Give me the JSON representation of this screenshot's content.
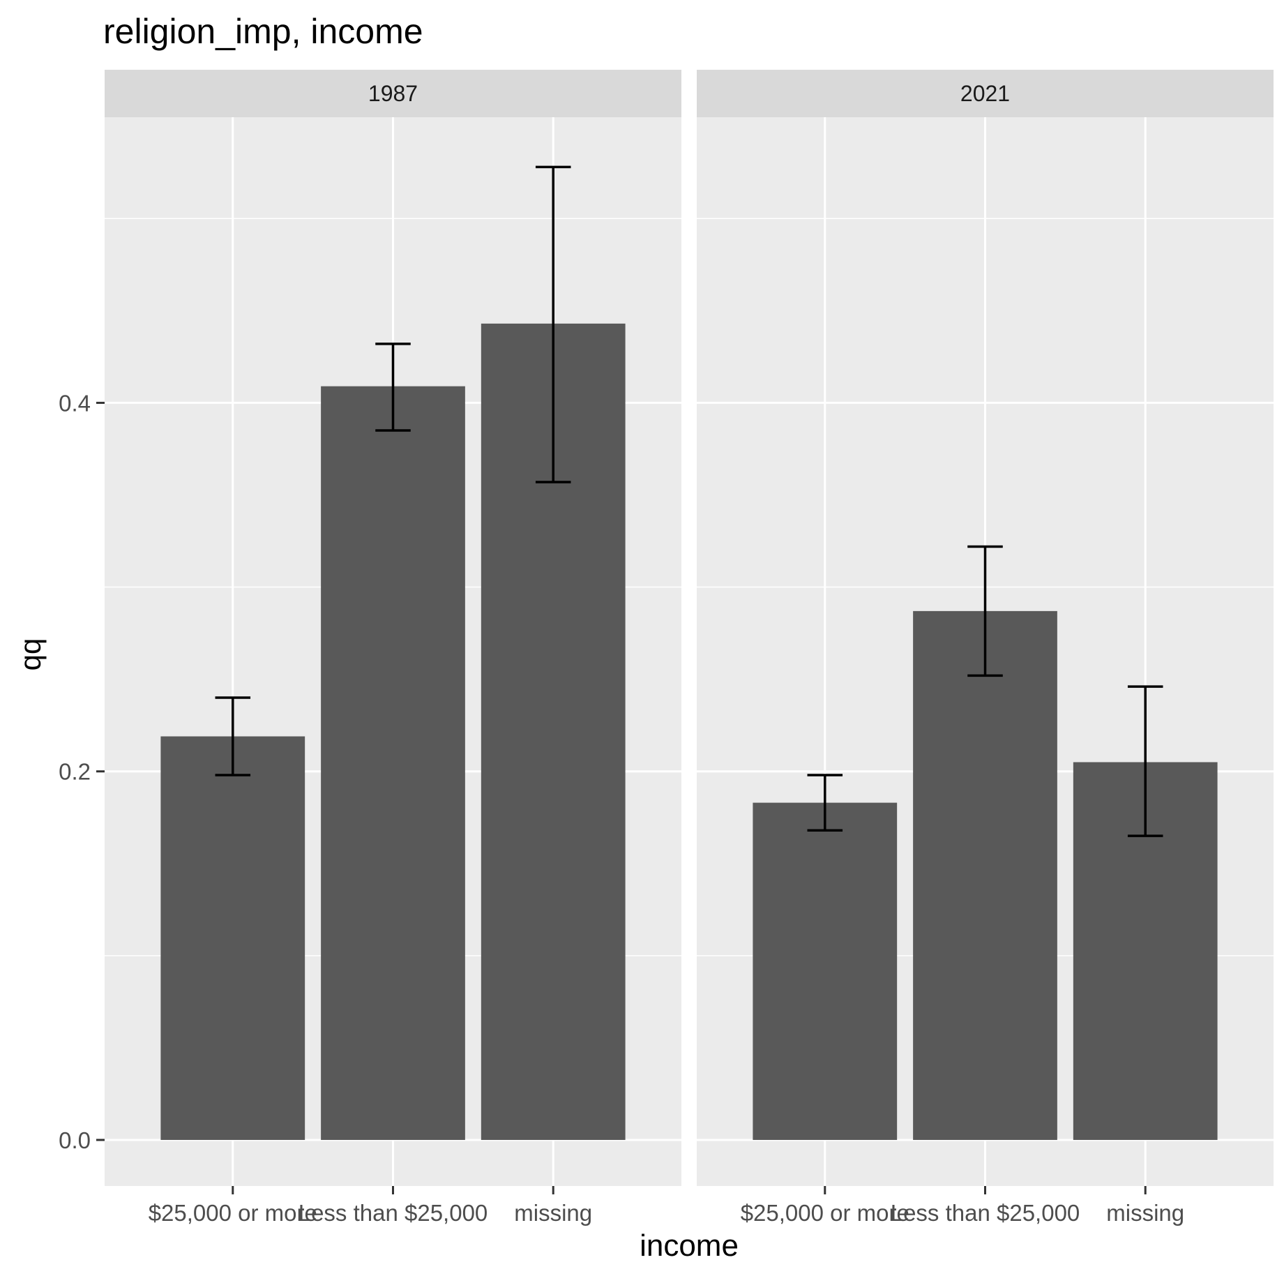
{
  "chart_data": {
    "type": "bar",
    "title": "religion_imp, income",
    "xlabel": "income",
    "ylabel": "qq",
    "ylim": [
      -0.025,
      0.555
    ],
    "yticks": [
      0.0,
      0.2,
      0.4
    ],
    "ytick_labels": [
      "0.0",
      "0.2",
      "0.4"
    ],
    "grid": true,
    "categories": [
      "$25,000 or more",
      "Less than $25,000",
      "missing"
    ],
    "facets": [
      {
        "label": "1987",
        "values": [
          0.219,
          0.409,
          0.443
        ],
        "error_low": [
          0.198,
          0.385,
          0.357
        ],
        "error_high": [
          0.24,
          0.432,
          0.528
        ]
      },
      {
        "label": "2021",
        "values": [
          0.183,
          0.287,
          0.205
        ],
        "error_low": [
          0.168,
          0.252,
          0.165
        ],
        "error_high": [
          0.198,
          0.322,
          0.246
        ]
      }
    ],
    "colors": {
      "bar": "#595959",
      "panel_bg": "#ebebeb",
      "strip_bg": "#d9d9d9",
      "grid": "#ffffff",
      "errorbar": "#000000",
      "axis_text": "#4d4d4d",
      "strip_text": "#1a1a1a",
      "title_text": "#000000"
    }
  }
}
